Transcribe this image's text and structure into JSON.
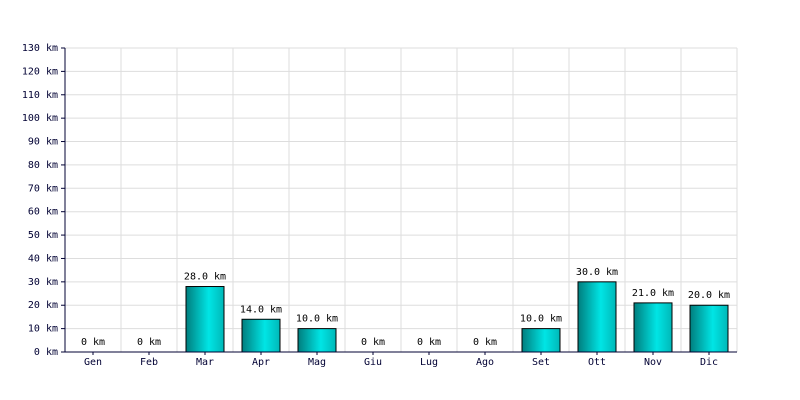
{
  "chart_data": {
    "type": "bar",
    "categories": [
      "Gen",
      "Feb",
      "Mar",
      "Apr",
      "Mag",
      "Giu",
      "Lug",
      "Ago",
      "Set",
      "Ott",
      "Nov",
      "Dic"
    ],
    "values": [
      0,
      0,
      28,
      14,
      10,
      0,
      0,
      0,
      10,
      30,
      21,
      20
    ],
    "value_labels": [
      "0 km",
      "0 km",
      "28.0 km",
      "14.0 km",
      "10.0 km",
      "0 km",
      "0 km",
      "0 km",
      "10.0 km",
      "30.0 km",
      "21.0 km",
      "20.0 km"
    ],
    "color": "#00e5e5",
    "ylim": [
      0,
      130
    ],
    "yticks": [
      {
        "value": 0,
        "label": "0 km"
      },
      {
        "value": 10,
        "label": "10 km"
      },
      {
        "value": 20,
        "label": "20 km"
      },
      {
        "value": 30,
        "label": "30 km"
      },
      {
        "value": 40,
        "label": "40 km"
      },
      {
        "value": 50,
        "label": "50 km"
      },
      {
        "value": 60,
        "label": "60 km"
      },
      {
        "value": 70,
        "label": "70 km"
      },
      {
        "value": 80,
        "label": "80 km"
      },
      {
        "value": 90,
        "label": "90 km"
      },
      {
        "value": 100,
        "label": "100 km"
      },
      {
        "value": 110,
        "label": "110 km"
      },
      {
        "value": 120,
        "label": "120 km"
      },
      {
        "value": 130,
        "label": "130 km"
      }
    ],
    "grid": true
  }
}
